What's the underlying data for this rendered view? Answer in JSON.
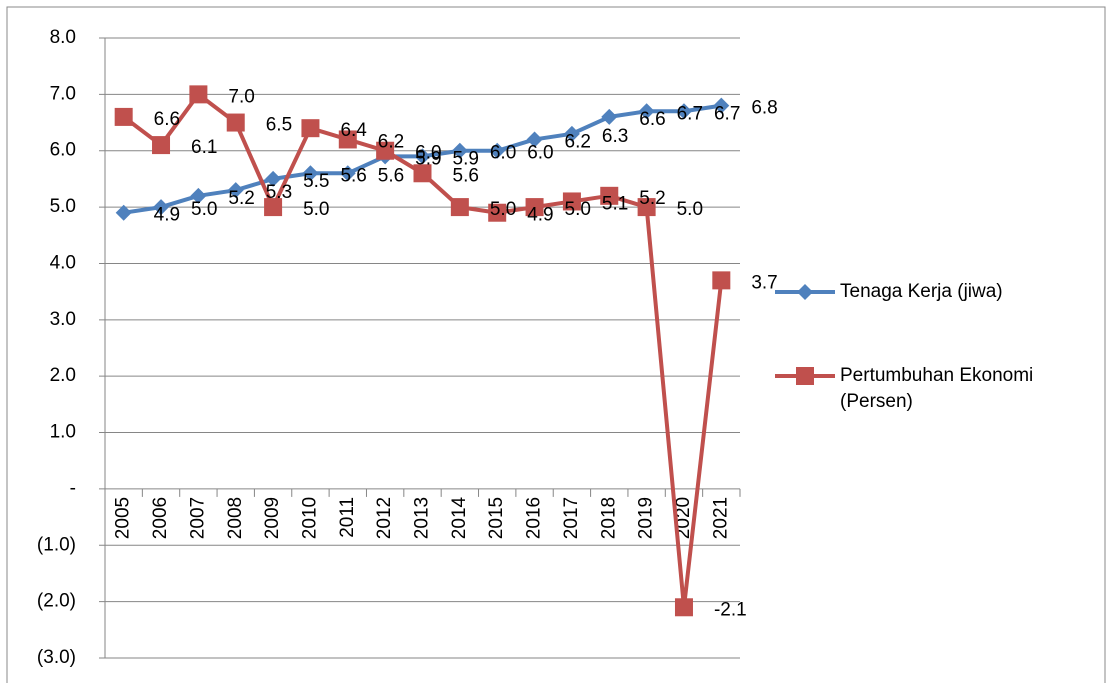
{
  "chart_data": {
    "type": "line",
    "categories": [
      "2005",
      "2006",
      "2007",
      "2008",
      "2009",
      "2010",
      "2011",
      "2012",
      "2013",
      "2014",
      "2015",
      "2016",
      "2017",
      "2018",
      "2019",
      "2020",
      "2021"
    ],
    "series": [
      {
        "name": "Tenaga Kerja (jiwa)",
        "color": "#4f81bd",
        "marker": "diamond",
        "values": [
          4.9,
          5.0,
          5.2,
          5.3,
          5.5,
          5.6,
          5.6,
          5.9,
          5.9,
          6.0,
          6.0,
          6.2,
          6.3,
          6.6,
          6.7,
          6.7,
          6.8
        ],
        "value_labels": [
          "4.9",
          "5.0",
          "5.2",
          "5.3",
          "5.5",
          "5.6",
          "5.6",
          "5.9",
          "5.9",
          "6.0",
          "6.0",
          "6.2",
          "6.3",
          "6.6",
          "6.7",
          "6.7",
          "6.8"
        ]
      },
      {
        "name": "Pertumbuhan Ekonomi (Persen)",
        "color": "#c0504d",
        "marker": "square",
        "values": [
          6.6,
          6.1,
          7.0,
          6.5,
          5.0,
          6.4,
          6.2,
          6.0,
          5.6,
          5.0,
          4.9,
          5.0,
          5.1,
          5.2,
          5.0,
          -2.1,
          3.7
        ],
        "value_labels": [
          "6.6",
          "6.1",
          "7.0",
          "6.5",
          "5.0",
          "6.4",
          "6.2",
          "6.0",
          "5.6",
          "5.0",
          "4.9",
          "5.0",
          "5.1",
          "5.2",
          "5.0",
          "-2.1",
          "3.7"
        ]
      }
    ],
    "ylim": [
      -3,
      8
    ],
    "yticks": [
      {
        "value": -3,
        "label": "(3.0)"
      },
      {
        "value": -2,
        "label": "(2.0)"
      },
      {
        "value": -1,
        "label": "(1.0)"
      },
      {
        "value": 0,
        "label": "-"
      },
      {
        "value": 1,
        "label": "1.0"
      },
      {
        "value": 2,
        "label": "2.0"
      },
      {
        "value": 3,
        "label": "3.0"
      },
      {
        "value": 4,
        "label": "4.0"
      },
      {
        "value": 5,
        "label": "5.0"
      },
      {
        "value": 6,
        "label": "6.0"
      },
      {
        "value": 7,
        "label": "7.0"
      },
      {
        "value": 8,
        "label": "8.0"
      }
    ],
    "grid": true
  }
}
